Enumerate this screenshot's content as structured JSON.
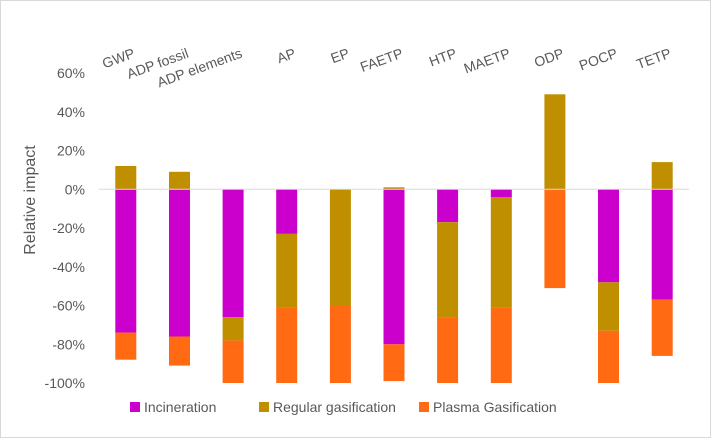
{
  "chart_data": {
    "type": "bar",
    "stacked": true,
    "title": "",
    "xlabel": "",
    "ylabel": "Relative impact",
    "ylim": [
      -100,
      60
    ],
    "yticks": [
      60,
      40,
      20,
      0,
      -20,
      -40,
      -60,
      -80,
      -100
    ],
    "ytick_labels": [
      "60%",
      "40%",
      "20%",
      "0%",
      "-20%",
      "-40%",
      "-60%",
      "-80%",
      "-100%"
    ],
    "category_label_position": "top",
    "legend_position": "bottom",
    "categories": [
      "GWP",
      "ADP fossil",
      "ADP elements",
      "AP",
      "EP",
      "FAETP",
      "HTP",
      "MAETP",
      "ODP",
      "POCP",
      "TETP"
    ],
    "series": [
      {
        "name": "Incineration",
        "color": "#cc00cc",
        "values": [
          -74,
          -76,
          -66,
          -23,
          0,
          -80,
          -17,
          -4,
          0,
          -48,
          -57
        ]
      },
      {
        "name": "Regular gasification",
        "color": "#bf8f00",
        "values": [
          12,
          9,
          -12,
          -38,
          -60,
          1,
          -49,
          -57,
          49,
          -25,
          14
        ]
      },
      {
        "name": "Plasma Gasification",
        "color": "#ff6a13",
        "values": [
          -14,
          -15,
          -22,
          -39,
          -40,
          -19,
          -34,
          -39,
          -51,
          -27,
          -29
        ]
      }
    ]
  }
}
